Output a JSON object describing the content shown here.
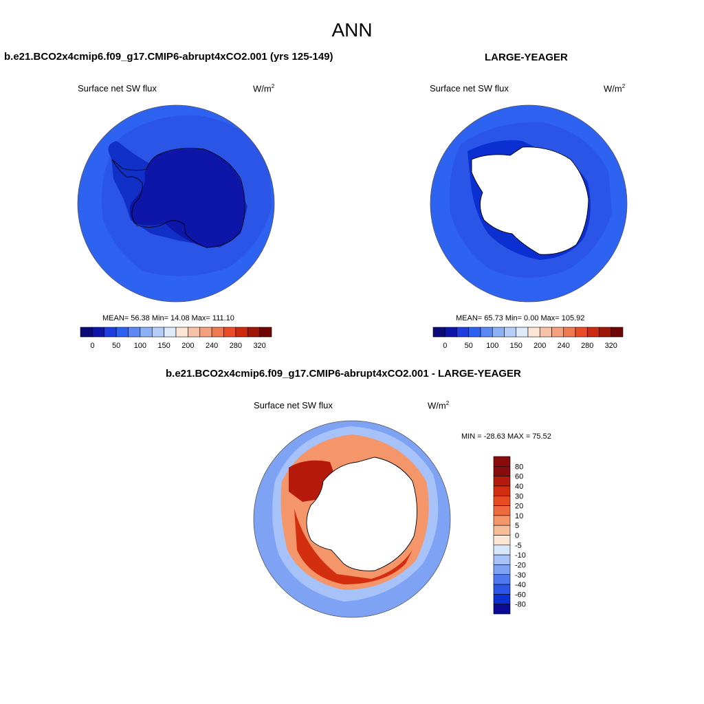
{
  "main_title": "ANN",
  "panels": [
    {
      "title": "b.e21.BCO2x4cmip6.f09_g17.CMIP6-abrupt4xCO2.001 (yrs 125-149)",
      "variable": "Surface net SW flux",
      "units_base": "W/m",
      "units_exp": "2",
      "stats": "MEAN=  56.38  Min=  14.08  Max= 111.10",
      "colorbar_ticks": [
        "0",
        "50",
        "100",
        "150",
        "200",
        "240",
        "280",
        "320"
      ]
    },
    {
      "title": "LARGE-YEAGER",
      "variable": "Surface net SW flux",
      "units_base": "W/m",
      "units_exp": "2",
      "stats": "MEAN=  65.73  Min=   0.00  Max= 105.92",
      "colorbar_ticks": [
        "0",
        "50",
        "100",
        "150",
        "200",
        "240",
        "280",
        "320"
      ]
    }
  ],
  "diff_panel": {
    "title": "b.e21.BCO2x4cmip6.f09_g17.CMIP6-abrupt4xCO2.001 - LARGE-YEAGER",
    "variable": "Surface net SW flux",
    "units_base": "W/m",
    "units_exp": "2",
    "stats": "MIN = -28.63 MAX =  75.52",
    "colorbar_ticks": [
      "80",
      "60",
      "40",
      "30",
      "20",
      "10",
      "5",
      "0",
      "-5",
      "-10",
      "-20",
      "-30",
      "-40",
      "-60",
      "-80"
    ]
  },
  "colors": {
    "abs_scale": [
      "#0a0a78",
      "#0d16a8",
      "#1e3ee0",
      "#2e62f0",
      "#5b88f2",
      "#8eb0f6",
      "#b6cdf8",
      "#ddebfb",
      "#fde5d6",
      "#f8c2a8",
      "#f4a17e",
      "#ef7a50",
      "#ea4d2a",
      "#cc2a10",
      "#9e1608",
      "#700606"
    ],
    "diff_scale": [
      "#8a0b0b",
      "#b51a0c",
      "#d42e10",
      "#e84a22",
      "#ef6a3e",
      "#f4956a",
      "#f8bd98",
      "#fde6d6",
      "#d6e6fb",
      "#a7c2f8",
      "#7ea3f4",
      "#4f78ee",
      "#2a55e6",
      "#0b2fd0",
      "#0a0a95"
    ],
    "land": "#ffffff",
    "coast": "#000000"
  }
}
